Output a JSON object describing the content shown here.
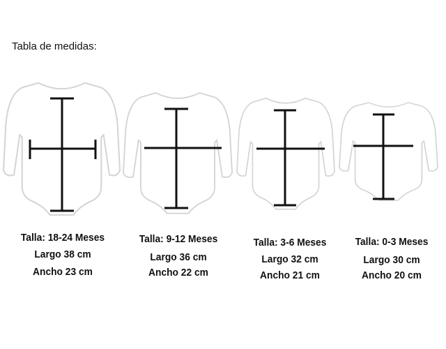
{
  "title": "Tabla de medidas:",
  "sizes": [
    {
      "talla": "Talla: 18-24 Meses",
      "largo": "Largo 38 cm",
      "ancho": "Ancho 23 cm"
    },
    {
      "talla": "Talla: 9-12 Meses",
      "largo": "Largo  36 cm",
      "ancho": "Ancho 22 cm"
    },
    {
      "talla": "Talla: 3-6 Meses",
      "largo": "Largo 32 cm",
      "ancho": "Ancho 21 cm"
    },
    {
      "talla": "Talla: 0-3 Meses",
      "largo": "Largo 30 cm",
      "ancho": "Ancho 20 cm"
    }
  ],
  "colors": {
    "garment": "#ffffff",
    "garment_shadow": "#dcdcdc",
    "measure_line": "#111111"
  }
}
